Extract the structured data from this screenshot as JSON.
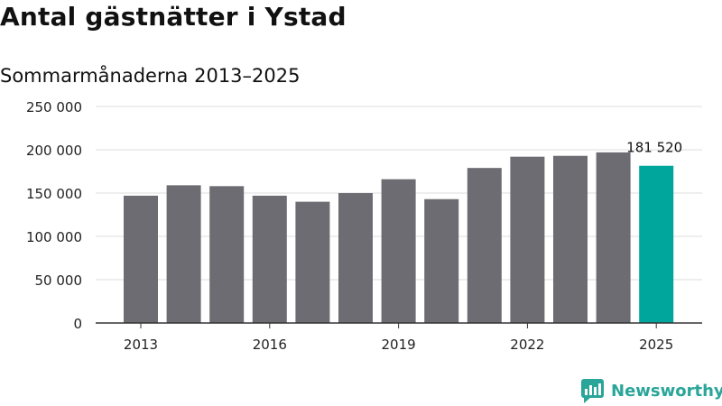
{
  "title": "Antal gästnätter i Ystad",
  "subtitle": "Sommarmånaderna 2013–2025",
  "brand": {
    "name": "Newsworthy",
    "icon": "bar-chart-speech-bubble-icon"
  },
  "colors": {
    "bar": "#6d6c72",
    "highlight": "#00a59c",
    "grid": "#dddddd",
    "axis": "#333333",
    "brand": "#2aa59a"
  },
  "chart_data": {
    "type": "bar",
    "categories": [
      "2013",
      "2014",
      "2015",
      "2016",
      "2017",
      "2018",
      "2019",
      "2020",
      "2021",
      "2022",
      "2023",
      "2024",
      "2025"
    ],
    "values": [
      147000,
      159000,
      158000,
      147000,
      140000,
      150000,
      166000,
      143000,
      179000,
      192000,
      193000,
      197000,
      181520
    ],
    "highlight_index": 12,
    "data_labels": [
      {
        "index": 12,
        "text": "181 520"
      }
    ],
    "x_tick_labels": [
      "2013",
      "2016",
      "2019",
      "2022",
      "2025"
    ],
    "y_ticks": [
      0,
      50000,
      100000,
      150000,
      200000,
      250000
    ],
    "y_tick_labels": [
      "0",
      "50 000",
      "100 000",
      "150 000",
      "200 000",
      "250 000"
    ],
    "ylim": [
      0,
      250000
    ],
    "grid": true,
    "legend": false,
    "xlabel": "",
    "ylabel": ""
  }
}
